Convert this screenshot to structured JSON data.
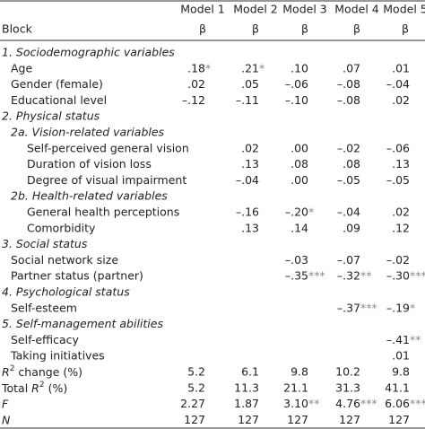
{
  "header": {
    "block": "Block",
    "models": [
      "Model 1",
      "Model 2",
      "Model 3",
      "Model 4",
      "Model 5"
    ],
    "beta": [
      "β",
      "β",
      "β",
      "β",
      "β"
    ]
  },
  "sections": [
    {
      "title": "1. Sociodemographic variables",
      "items": [
        {
          "label": "Age",
          "values": [
            {
              "v": ".18",
              "sig": "*"
            },
            {
              "v": ".21",
              "sig": "*"
            },
            ".10",
            ".07",
            ".01"
          ]
        },
        {
          "label": "Gender (female)",
          "values": [
            ".02",
            ".05",
            "–.06",
            "–.08",
            "–.04"
          ]
        },
        {
          "label": "Educational level",
          "values": [
            "–.12",
            "–.11",
            "–.10",
            "–.08",
            ".02"
          ]
        }
      ]
    },
    {
      "title": "2. Physical status",
      "subsections": [
        {
          "title": "2a. Vision-related variables",
          "items": [
            {
              "label": "Self-perceived general vision",
              "values": [
                null,
                ".02",
                ".00",
                "–.02",
                "–.06"
              ]
            },
            {
              "label": "Duration of vision loss",
              "values": [
                null,
                ".13",
                ".08",
                ".08",
                ".13"
              ]
            },
            {
              "label": "Degree of visual impairment",
              "values": [
                null,
                "–.04",
                ".00",
                "–.05",
                "–.05"
              ]
            }
          ]
        },
        {
          "title": "2b. Health-related variables",
          "items": [
            {
              "label": "General health perceptions",
              "values": [
                null,
                "–.16",
                {
                  "v": "–.20",
                  "sig": "*"
                },
                "–.04",
                ".02"
              ]
            },
            {
              "label": "Comorbidity",
              "values": [
                null,
                ".13",
                ".14",
                ".09",
                ".12"
              ]
            }
          ]
        }
      ]
    },
    {
      "title": "3. Social status",
      "items": [
        {
          "label": "Social network size",
          "values": [
            null,
            null,
            "–.03",
            "–.07",
            "–.02"
          ]
        },
        {
          "label": "Partner status (partner)",
          "values": [
            null,
            null,
            {
              "v": "–.35",
              "sig": "***"
            },
            {
              "v": "–.32",
              "sig": "**"
            },
            {
              "v": "–.30",
              "sig": "***"
            }
          ]
        }
      ]
    },
    {
      "title": "4. Psychological status",
      "items": [
        {
          "label": "Self-esteem",
          "values": [
            null,
            null,
            null,
            {
              "v": "–.37",
              "sig": "***"
            },
            {
              "v": "–.19",
              "sig": "*"
            }
          ]
        }
      ]
    },
    {
      "title": "5. Self-management abilities",
      "items": [
        {
          "label": "Self-efficacy",
          "values": [
            null,
            null,
            null,
            null,
            {
              "v": "–.41",
              "sig": "**"
            }
          ]
        },
        {
          "label": "Taking initiatives",
          "values": [
            null,
            null,
            null,
            null,
            ".01"
          ]
        }
      ]
    }
  ],
  "stats": [
    {
      "label": {
        "var": "R",
        "sup": "2",
        "post": " change (%)"
      },
      "values": [
        "5.2",
        "6.1",
        "9.8",
        "10.2",
        "9.8"
      ]
    },
    {
      "label": {
        "pre": "Total ",
        "var": "R",
        "sup": "2",
        "post": " (%)"
      },
      "values": [
        "5.2",
        "11.3",
        "21.1",
        "31.3",
        "41.1"
      ]
    },
    {
      "label": {
        "var": "F"
      },
      "values": [
        "2.27",
        "1.87",
        {
          "v": "3.10",
          "sig": "**"
        },
        {
          "v": "4.76",
          "sig": "***"
        },
        {
          "v": "6.06",
          "sig": "***"
        }
      ]
    },
    {
      "label": {
        "var": "N"
      },
      "values": [
        "127",
        "127",
        "127",
        "127",
        "127"
      ]
    }
  ]
}
